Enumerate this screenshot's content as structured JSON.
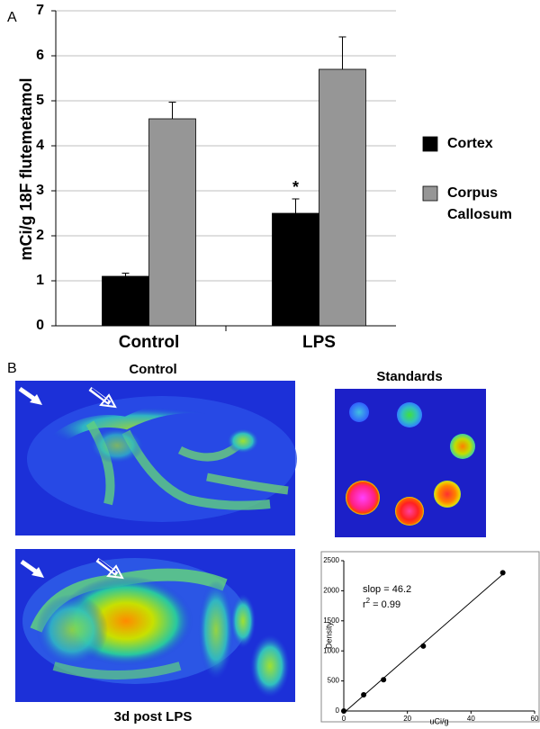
{
  "chart_data": [
    {
      "type": "bar",
      "panel": "A",
      "ylabel": "mCi/g 18F flutemetamol",
      "categories": [
        "Control",
        "LPS"
      ],
      "series": [
        {
          "name": "Cortex",
          "color": "#000000",
          "values": [
            1.1,
            2.5
          ],
          "errors": [
            0.07,
            0.32
          ]
        },
        {
          "name": "Corpus Callosum",
          "color": "#969696",
          "values": [
            4.6,
            5.7
          ],
          "errors": [
            0.37,
            0.72
          ]
        }
      ],
      "annotations": [
        "*"
      ],
      "ylim": [
        0,
        7
      ],
      "yticks": [
        0,
        1,
        2,
        3,
        4,
        5,
        6,
        7
      ],
      "grid": true
    },
    {
      "type": "scatter",
      "xlabel": "uCi/g",
      "ylabel": "Density",
      "x": [
        0,
        6.25,
        12.5,
        25,
        50
      ],
      "y": [
        0,
        270,
        520,
        1080,
        2300
      ],
      "color": "#000000",
      "annotations": [
        "slop = 46.2"
      ],
      "r_squared": {
        "symbol": "r",
        "exponent": "2",
        "text": " = 0.99"
      },
      "xlim": [
        0,
        60
      ],
      "xticks": [
        0,
        20,
        40,
        60
      ],
      "ylim": [
        0,
        2500
      ],
      "yticks": [
        0,
        500,
        1000,
        1500,
        2000,
        2500
      ]
    }
  ],
  "panel_b": {
    "label": "B",
    "images": [
      "Control",
      "3d post LPS"
    ],
    "standards": "Standards"
  }
}
